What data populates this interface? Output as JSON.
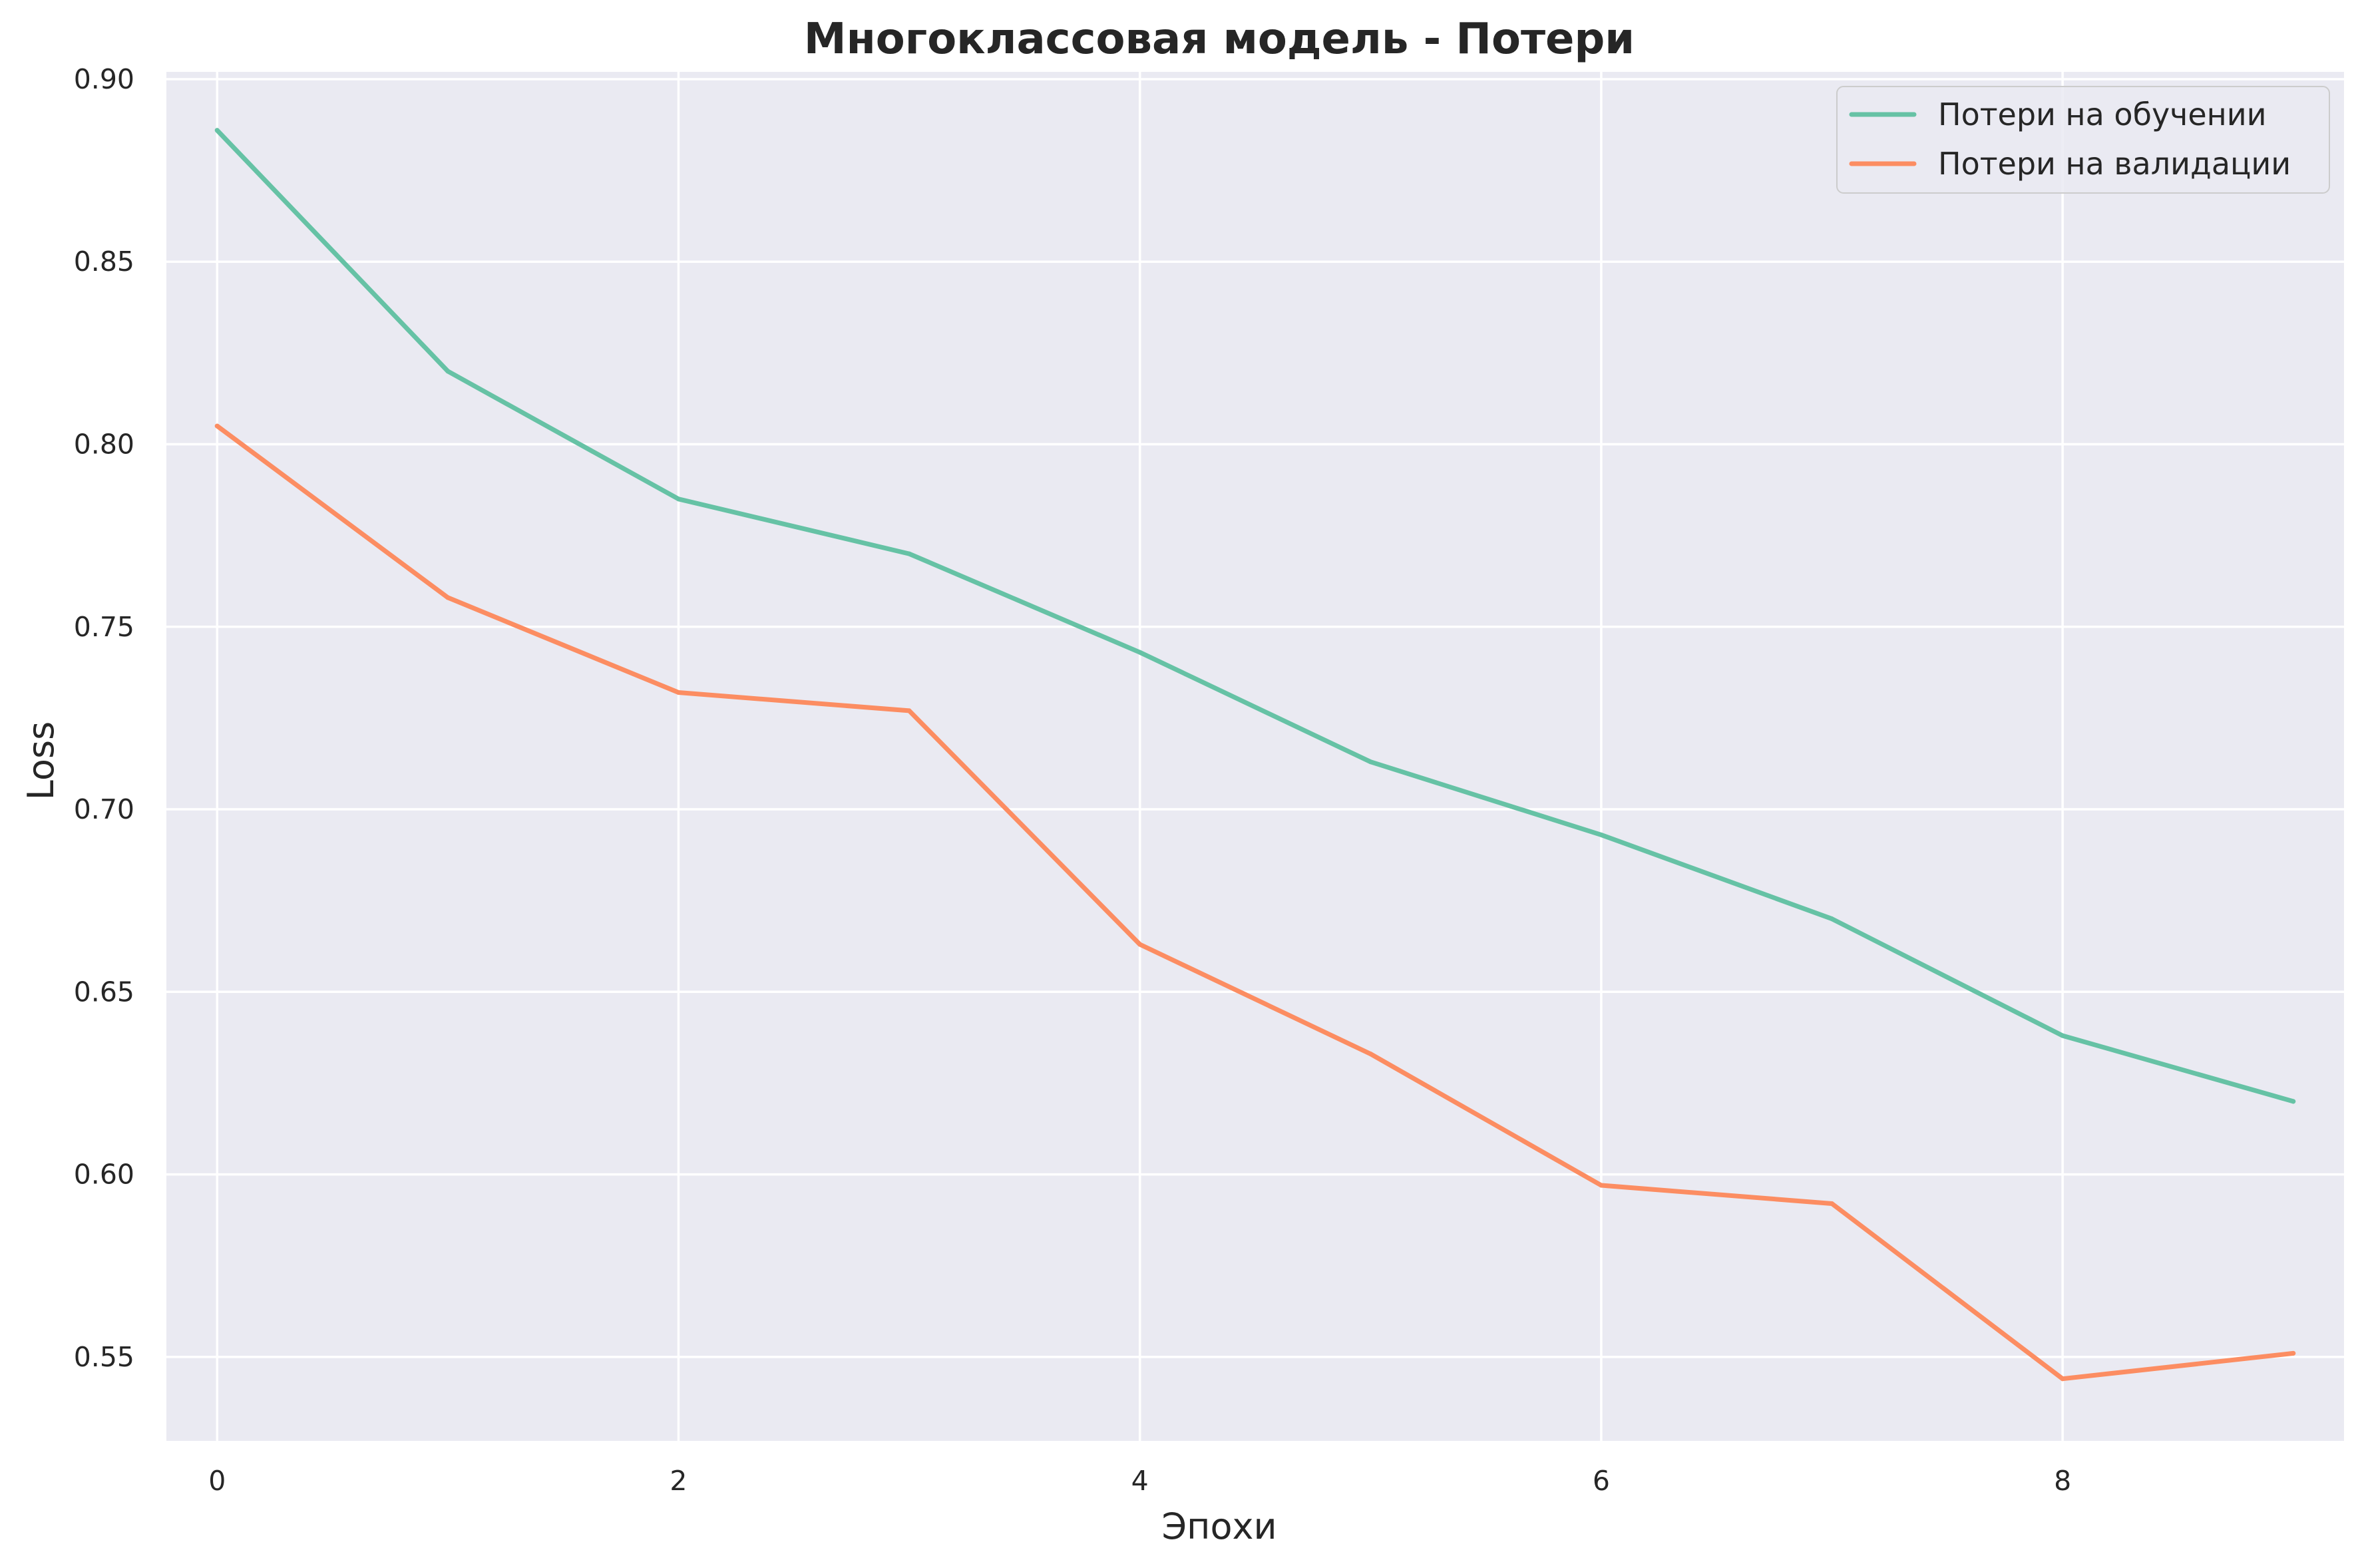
{
  "chart_data": {
    "type": "line",
    "title": "Многоклассовая модель - Потери",
    "xlabel": "Эпохи",
    "ylabel": "Loss",
    "x": [
      0,
      1,
      2,
      3,
      4,
      5,
      6,
      7,
      8,
      9
    ],
    "xticks": [
      "0",
      "2",
      "4",
      "6",
      "8"
    ],
    "xtick_values": [
      0,
      2,
      4,
      6,
      8
    ],
    "yticks": [
      "0.55",
      "0.60",
      "0.65",
      "0.70",
      "0.75",
      "0.80",
      "0.85",
      "0.90"
    ],
    "ytick_values": [
      0.55,
      0.6,
      0.65,
      0.7,
      0.75,
      0.8,
      0.85,
      0.9
    ],
    "xlim": [
      -0.22,
      9.22
    ],
    "ylim": [
      0.527,
      0.902
    ],
    "grid": true,
    "legend_position": "top-right",
    "background": "#eaeaf2",
    "series": [
      {
        "name": "Потери на обучении",
        "color": "#66c2a5",
        "values": [
          0.886,
          0.82,
          0.785,
          0.77,
          0.743,
          0.713,
          0.693,
          0.67,
          0.638,
          0.62
        ]
      },
      {
        "name": "Потери на валидации",
        "color": "#fc8d62",
        "values": [
          0.805,
          0.758,
          0.732,
          0.727,
          0.663,
          0.633,
          0.597,
          0.592,
          0.544,
          0.551
        ]
      }
    ]
  }
}
